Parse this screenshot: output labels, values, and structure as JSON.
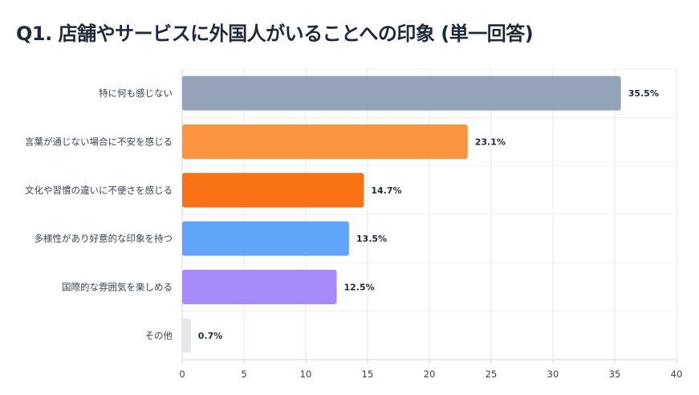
{
  "title": "Q1. 店舗やサービスに外国人がいることへの印象 (単一回答)",
  "chart_data": {
    "type": "bar",
    "orientation": "horizontal",
    "title": "Q1. 店舗やサービスに外国人がいることへの印象 (単一回答)",
    "categories": [
      "特に何も感じない",
      "言葉が通じない場合に不安を感じる",
      "文化や習慣の違いに不便さを感じる",
      "多様性があり好意的な印象を持つ",
      "国際的な雰囲気を楽しめる",
      "その他"
    ],
    "values": [
      35.5,
      23.1,
      14.7,
      13.5,
      12.5,
      0.7
    ],
    "value_labels": [
      "35.5%",
      "23.1%",
      "14.7%",
      "13.5%",
      "12.5%",
      "0.7%"
    ],
    "colors": [
      "#94a3b8",
      "#fb953f",
      "#f97316",
      "#60a5fa",
      "#a78bfa",
      "#e5e7eb"
    ],
    "xlim": [
      0,
      40
    ],
    "xticks": [
      0,
      5,
      10,
      15,
      20,
      25,
      30,
      35,
      40
    ],
    "xlabel": "",
    "ylabel": "",
    "grid": true,
    "legend": "none"
  }
}
